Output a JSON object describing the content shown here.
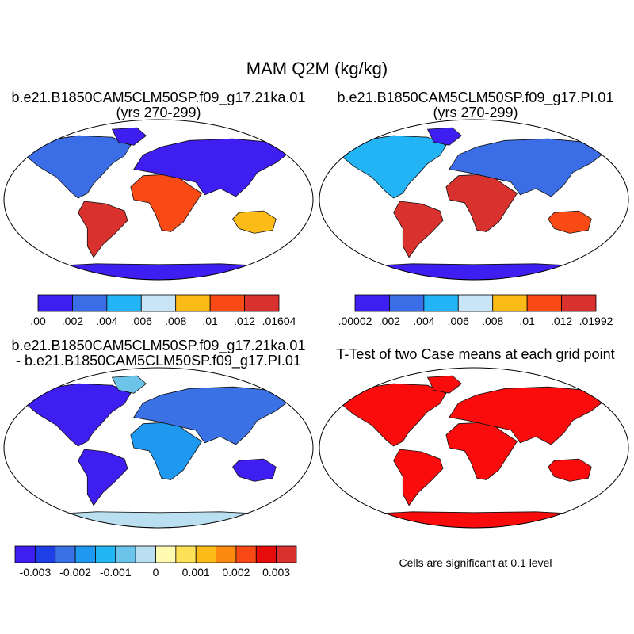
{
  "title": "MAM Q2M (kg/kg)",
  "panels": {
    "top_left": {
      "title_line1": "b.e21.B1850CAM5CLM50SP.f09_g17.21ka.01",
      "title_line2": "(yrs 270-299)"
    },
    "top_right": {
      "title_line1": "b.e21.B1850CAM5CLM50SP.f09_g17.PI.01",
      "title_line2": "(yrs 270-299)"
    },
    "bottom_left": {
      "title_line1": "b.e21.B1850CAM5CLM50SP.f09_g17.21ka.01",
      "title_line2": "- b.e21.B1850CAM5CLM50SP.f09_g17.PI.01"
    },
    "bottom_right": {
      "title_line1": "T-Test of two Case means at each grid point",
      "note": "Cells are significant at 0.1 level"
    }
  },
  "colorbars": {
    "top_left": {
      "colors": [
        "#3e1ef0",
        "#3b6ee6",
        "#22b4f4",
        "#c8e4f6",
        "#fdbb18",
        "#f94a16",
        "#d8312e"
      ],
      "labels": [
        ".00",
        ".002",
        ".004",
        ".006",
        ".008",
        ".01",
        ".012",
        ".01604"
      ]
    },
    "top_right": {
      "colors": [
        "#3e1ef0",
        "#3b6ee6",
        "#22b4f4",
        "#c8e4f6",
        "#fdbb18",
        "#f94a16",
        "#d8312e"
      ],
      "labels": [
        ".00002",
        ".002",
        ".004",
        ".006",
        ".008",
        ".01",
        ".012",
        ".01992"
      ]
    },
    "bottom_left": {
      "colors": [
        "#3e1ef0",
        "#1e3ee6",
        "#3a72e6",
        "#1f98ef",
        "#22b6f4",
        "#6cc4ea",
        "#b9dff1",
        "#fffab2",
        "#fde156",
        "#fdbb18",
        "#fc8a0e",
        "#f94a16",
        "#e60c0c",
        "#d8312e"
      ],
      "labels": [
        "-0.003",
        "-0.002",
        "-0.001",
        "0",
        "0.001",
        "0.002",
        "0.003"
      ]
    }
  },
  "map_colors": {
    "ocean": "#ffffff",
    "significant": "#fa0c0c",
    "coast": "#111111"
  }
}
